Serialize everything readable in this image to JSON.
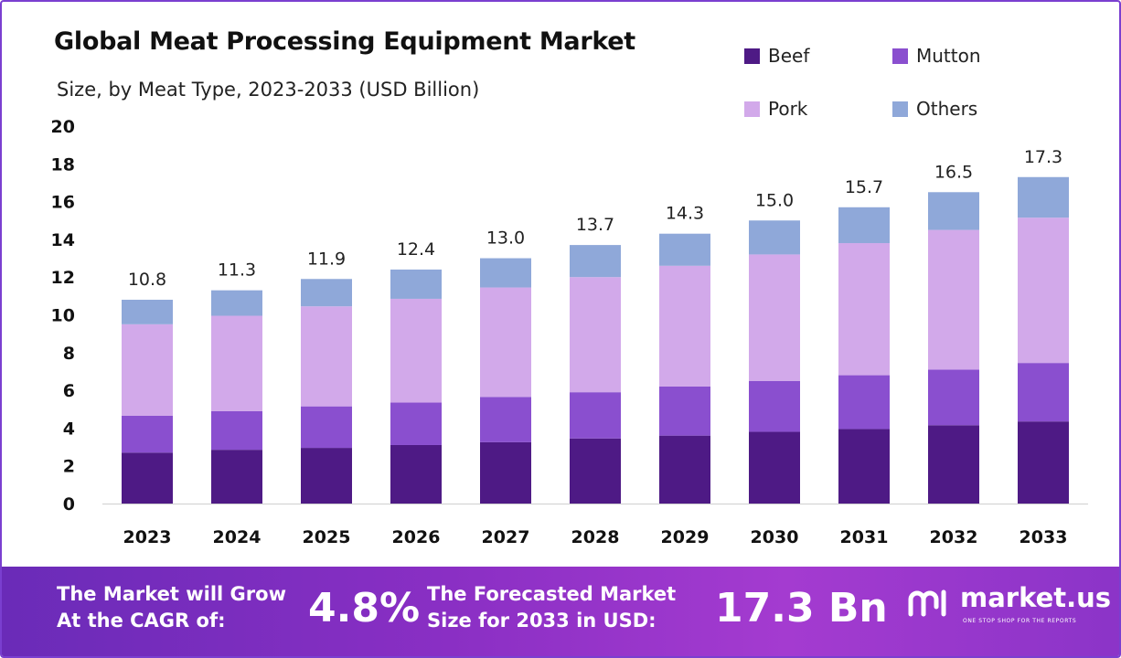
{
  "header": {
    "title": "Global Meat Processing Equipment Market",
    "subtitle": "Size, by Meat Type, 2023-2033 (USD Billion)"
  },
  "legend": {
    "items": [
      {
        "label": "Beef",
        "color": "#4e1a85"
      },
      {
        "label": "Mutton",
        "color": "#8a4fcf"
      },
      {
        "label": "Pork",
        "color": "#d2a9ea"
      },
      {
        "label": "Others",
        "color": "#8fa8d9"
      }
    ]
  },
  "chart_data": {
    "type": "bar",
    "stacked": true,
    "categories": [
      "2023",
      "2024",
      "2025",
      "2026",
      "2027",
      "2028",
      "2029",
      "2030",
      "2031",
      "2032",
      "2033"
    ],
    "series": [
      {
        "name": "Beef",
        "color": "#4e1a85",
        "values": [
          2.7,
          2.85,
          2.95,
          3.1,
          3.25,
          3.45,
          3.6,
          3.8,
          3.95,
          4.15,
          4.35
        ]
      },
      {
        "name": "Mutton",
        "color": "#8a4fcf",
        "values": [
          1.95,
          2.05,
          2.2,
          2.25,
          2.4,
          2.45,
          2.6,
          2.7,
          2.85,
          2.95,
          3.1
        ]
      },
      {
        "name": "Pork",
        "color": "#d2a9ea",
        "values": [
          4.85,
          5.05,
          5.3,
          5.5,
          5.8,
          6.1,
          6.4,
          6.7,
          7.0,
          7.4,
          7.7
        ]
      },
      {
        "name": "Others",
        "color": "#8fa8d9",
        "values": [
          1.3,
          1.35,
          1.45,
          1.55,
          1.55,
          1.7,
          1.7,
          1.8,
          1.9,
          2.0,
          2.15
        ]
      }
    ],
    "totals": [
      "10.8",
      "11.3",
      "11.9",
      "12.4",
      "13.0",
      "13.7",
      "14.3",
      "15.0",
      "15.7",
      "16.5",
      "17.3"
    ],
    "yticks": [
      "0",
      "2",
      "4",
      "6",
      "8",
      "10",
      "12",
      "14",
      "16",
      "18",
      "20"
    ],
    "ylim": [
      0,
      20
    ],
    "grid": false,
    "legend_position": "top-right"
  },
  "banner": {
    "grow_text_line1": "The Market will Grow",
    "grow_text_line2": "At the CAGR of:",
    "cagr": "4.8%",
    "forecast_text_line1": "The Forecasted Market",
    "forecast_text_line2": "Size for 2033 in USD:",
    "forecast_value": "17.3 Bn",
    "logo_text": "market.us",
    "logo_tagline": "ONE STOP SHOP FOR THE REPORTS"
  }
}
